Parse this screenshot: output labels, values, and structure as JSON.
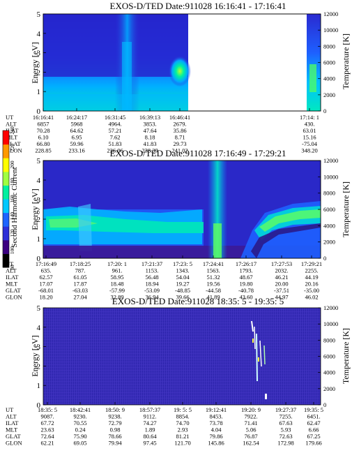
{
  "colorbar": {
    "label": "Second Harmonic Current",
    "ticks": [
      "80",
      "100",
      "120",
      "140",
      "160",
      "180",
      "200",
      "220",
      "240"
    ],
    "colors": [
      "#000000",
      "#3b0080",
      "#2d2fd8",
      "#1e64ff",
      "#00c8ff",
      "#00f0a0",
      "#a0ff40",
      "#ffff00",
      "#ff9900",
      "#ff0000"
    ]
  },
  "chart_data": [
    {
      "type": "heatmap",
      "title": "EXOS-D/TED   Date:911028   16:16:41 - 17:16:41",
      "ylabel": "Energy [eV]",
      "y2label": "Temperature [K]",
      "ylim": [
        0,
        5
      ],
      "y2lim": [
        0,
        12000
      ],
      "yticks": [
        "0",
        "1",
        "2",
        "3",
        "4",
        "5"
      ],
      "y2ticks": [
        "0",
        "2000",
        "4000",
        "6000",
        "8000",
        "10000",
        "12000"
      ],
      "row_labels": [
        "UT",
        "ALT",
        "ILAT",
        "MLT",
        "GLAT",
        "GLON"
      ],
      "columns": [
        {
          "UT": "16:16:41",
          "ALT": "6857",
          "ILAT": "70.28",
          "MLT": "6.10",
          "GLAT": "66.80",
          "GLON": "228.85"
        },
        {
          "UT": "16:24:17",
          "ALT": "5968",
          "ILAT": "64.62",
          "MLT": "6.95",
          "GLAT": "59.96",
          "GLON": "233.16"
        },
        {
          "UT": "16:31:45",
          "ALT": "4964.",
          "ILAT": "57.21",
          "MLT": "7.62",
          "GLAT": "51.83",
          "GLON": "236.06"
        },
        {
          "UT": "16:39:13",
          "ALT": "3853.",
          "ILAT": "47.64",
          "MLT": "8.18",
          "GLAT": "41.83",
          "GLON": "238.39"
        },
        {
          "UT": "16:46:41",
          "ALT": "2679.",
          "ILAT": "35.86",
          "MLT": "8.71",
          "GLAT": "29.73",
          "GLON": "241.02"
        },
        {
          "UT": "17:14: 1",
          "ALT": "430.",
          "ILAT": "63.01",
          "MLT": "15.16",
          "GLAT": "-75.04",
          "GLON": "348.20"
        }
      ]
    },
    {
      "type": "heatmap",
      "title": "EXOS-D/TED   Date:911028   17:16:49 - 17:29:21",
      "ylabel": "Energy [eV]",
      "y2label": "Temperature [K]",
      "ylim": [
        0,
        5
      ],
      "y2lim": [
        0,
        12000
      ],
      "yticks": [
        "0",
        "1",
        "2",
        "3",
        "4",
        "5"
      ],
      "y2ticks": [
        "0",
        "2000",
        "4000",
        "6000",
        "8000",
        "10000",
        "12000"
      ],
      "row_labels": [
        "UT",
        "ALT",
        "ILAT",
        "MLT",
        "GLAT",
        "GLON"
      ],
      "columns": [
        {
          "UT": "17:16:49",
          "ALT": "635.",
          "ILAT": "62.57",
          "MLT": "17.07",
          "GLAT": "-68.01",
          "GLON": "18.20"
        },
        {
          "UT": "17:18:25",
          "ALT": "787.",
          "ILAT": "61.05",
          "MLT": "17.87",
          "GLAT": "-63.03",
          "GLON": "27.04"
        },
        {
          "UT": "17:20: 1",
          "ALT": "961.",
          "ILAT": "58.95",
          "MLT": "18.48",
          "GLAT": "-57.99",
          "GLON": "32.89"
        },
        {
          "UT": "17:21:37",
          "ALT": "1153.",
          "ILAT": "56.48",
          "MLT": "18.94",
          "GLAT": "-53.09",
          "GLON": "36.94"
        },
        {
          "UT": "17:23: 5",
          "ALT": "1343.",
          "ILAT": "54.04",
          "MLT": "19.27",
          "GLAT": "-48.85",
          "GLON": "39.66"
        },
        {
          "UT": "17:24:41",
          "ALT": "1563.",
          "ILAT": "51.32",
          "MLT": "19.56",
          "GLAT": "-44.58",
          "GLON": "41.89"
        },
        {
          "UT": "17:26:17",
          "ALT": "1793.",
          "ILAT": "48.67",
          "MLT": "19.80",
          "GLAT": "-40.78",
          "GLON": "43.60"
        },
        {
          "UT": "17:27:53",
          "ALT": "2032.",
          "ILAT": "46.21",
          "MLT": "20.00",
          "GLAT": "-37.51",
          "GLON": "44.97"
        },
        {
          "UT": "17:29:21",
          "ALT": "2255.",
          "ILAT": "44.19",
          "MLT": "20.16",
          "GLAT": "-35.00",
          "GLON": "46.02"
        }
      ]
    },
    {
      "type": "heatmap",
      "title": "EXOS-D/TED   Date:911028   18:35: 5 - 19:35: 5",
      "ylabel": "Energy [eV]",
      "y2label": "Temperature [K]",
      "ylim": [
        0,
        5
      ],
      "y2lim": [
        0,
        12000
      ],
      "yticks": [
        "0",
        "1",
        "2",
        "3",
        "4",
        "5"
      ],
      "y2ticks": [
        "0",
        "2000",
        "4000",
        "6000",
        "8000",
        "10000",
        "12000"
      ],
      "row_labels": [
        "UT",
        "ALT",
        "ILAT",
        "MLT",
        "GLAT",
        "GLON"
      ],
      "columns": [
        {
          "UT": "18:35: 5",
          "ALT": "9087.",
          "ILAT": "67.72",
          "MLT": "23.63",
          "GLAT": "72.64",
          "GLON": "62.21"
        },
        {
          "UT": "18:42:41",
          "ALT": "9230.",
          "ILAT": "70.55",
          "MLT": "0.24",
          "GLAT": "75.90",
          "GLON": "69.05"
        },
        {
          "UT": "18:50: 9",
          "ALT": "9238.",
          "ILAT": "72.79",
          "MLT": "0.98",
          "GLAT": "78.66",
          "GLON": "79.94"
        },
        {
          "UT": "18:57:37",
          "ALT": "9112.",
          "ILAT": "74.27",
          "MLT": "1.89",
          "GLAT": "80.64",
          "GLON": "97.45"
        },
        {
          "UT": "19: 5: 5",
          "ALT": "8854.",
          "ILAT": "74.70",
          "MLT": "2.93",
          "GLAT": "81.21",
          "GLON": "121.70"
        },
        {
          "UT": "19:12:41",
          "ALT": "8453.",
          "ILAT": "73.78",
          "MLT": "4.04",
          "GLAT": "79.86",
          "GLON": "145.86"
        },
        {
          "UT": "19:20: 9",
          "ALT": "7922.",
          "ILAT": "71.41",
          "MLT": "5.06",
          "GLAT": "76.87",
          "GLON": "162.54"
        },
        {
          "UT": "19:27:37",
          "ALT": "7255.",
          "ILAT": "67.63",
          "MLT": "5.93",
          "GLAT": "72.63",
          "GLON": "172.98"
        },
        {
          "UT": "19:35: 5",
          "ALT": "6451.",
          "ILAT": "62.47",
          "MLT": "6.66",
          "GLAT": "67.25",
          "GLON": "179.66"
        }
      ]
    }
  ]
}
